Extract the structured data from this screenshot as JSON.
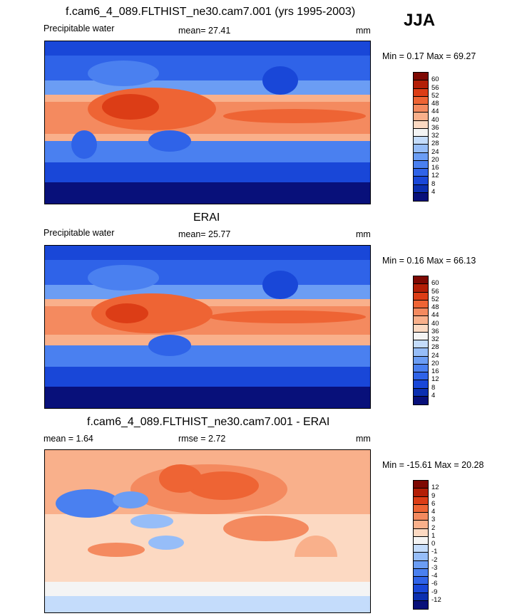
{
  "season": "JJA",
  "panels": [
    {
      "title": "f.cam6_4_089.FLTHIST_ne30.cam7.001 (yrs 1995-2003)",
      "left_label": "Precipitable water",
      "center_label": "mean=  27.41",
      "units": "mm",
      "minmax": "Min =   0.17 Max =  69.27",
      "colorbar_ticks": [
        "60",
        "56",
        "52",
        "48",
        "44",
        "40",
        "36",
        "32",
        "28",
        "24",
        "20",
        "16",
        "12",
        "8",
        "4"
      ]
    },
    {
      "title": "ERAI",
      "left_label": "Precipitable water",
      "center_label": "mean=  25.77",
      "units": "mm",
      "minmax": "Min =   0.16 Max =  66.13",
      "colorbar_ticks": [
        "60",
        "56",
        "52",
        "48",
        "44",
        "40",
        "36",
        "32",
        "28",
        "24",
        "20",
        "16",
        "12",
        "8",
        "4"
      ]
    },
    {
      "title": "f.cam6_4_089.FLTHIST_ne30.cam7.001 - ERAI",
      "left_label": "mean =   1.64",
      "center_label": "rmse =   2.72",
      "units": "mm",
      "minmax": "Min = -15.61 Max =  20.28",
      "colorbar_ticks": [
        "12",
        "9",
        "6",
        "4",
        "3",
        "2",
        "1",
        "0",
        "-1",
        "-2",
        "-3",
        "-4",
        "-6",
        "-9",
        "-12"
      ]
    }
  ],
  "chart_data": [
    {
      "type": "heatmap",
      "title": "f.cam6_4_089.FLTHIST_ne30.cam7.001 (yrs 1995-2003)",
      "variable": "Precipitable water",
      "units": "mm",
      "mean": 27.41,
      "min": 0.17,
      "max": 69.27,
      "levels": [
        4,
        8,
        12,
        16,
        20,
        24,
        28,
        32,
        36,
        40,
        44,
        48,
        52,
        56,
        60
      ],
      "colors": [
        "#08107a",
        "#0b2fb0",
        "#1947d8",
        "#2f63e8",
        "#4a80f0",
        "#6b9df4",
        "#96bdf8",
        "#c4dcfb",
        "#f4f4f4",
        "#fcd9c2",
        "#f9b08b",
        "#f48a5f",
        "#ee6434",
        "#dc3d16",
        "#b31e06",
        "#7e0903"
      ]
    },
    {
      "type": "heatmap",
      "title": "ERAI",
      "variable": "Precipitable water",
      "units": "mm",
      "mean": 25.77,
      "min": 0.16,
      "max": 66.13,
      "levels": [
        4,
        8,
        12,
        16,
        20,
        24,
        28,
        32,
        36,
        40,
        44,
        48,
        52,
        56,
        60
      ],
      "colors": [
        "#08107a",
        "#0b2fb0",
        "#1947d8",
        "#2f63e8",
        "#4a80f0",
        "#6b9df4",
        "#96bdf8",
        "#c4dcfb",
        "#f4f4f4",
        "#fcd9c2",
        "#f9b08b",
        "#f48a5f",
        "#ee6434",
        "#dc3d16",
        "#b31e06",
        "#7e0903"
      ]
    },
    {
      "type": "heatmap",
      "title": "f.cam6_4_089.FLTHIST_ne30.cam7.001 - ERAI",
      "units": "mm",
      "mean": 1.64,
      "rmse": 2.72,
      "min": -15.61,
      "max": 20.28,
      "levels": [
        -12,
        -9,
        -6,
        -4,
        -3,
        -2,
        -1,
        0,
        1,
        2,
        3,
        4,
        6,
        9,
        12
      ],
      "colors": [
        "#08107a",
        "#0b2fb0",
        "#1947d8",
        "#2f63e8",
        "#4a80f0",
        "#6b9df4",
        "#96bdf8",
        "#c4dcfb",
        "#f4f4f4",
        "#fcd9c2",
        "#f9b08b",
        "#f48a5f",
        "#ee6434",
        "#dc3d16",
        "#b31e06",
        "#7e0903"
      ]
    }
  ]
}
